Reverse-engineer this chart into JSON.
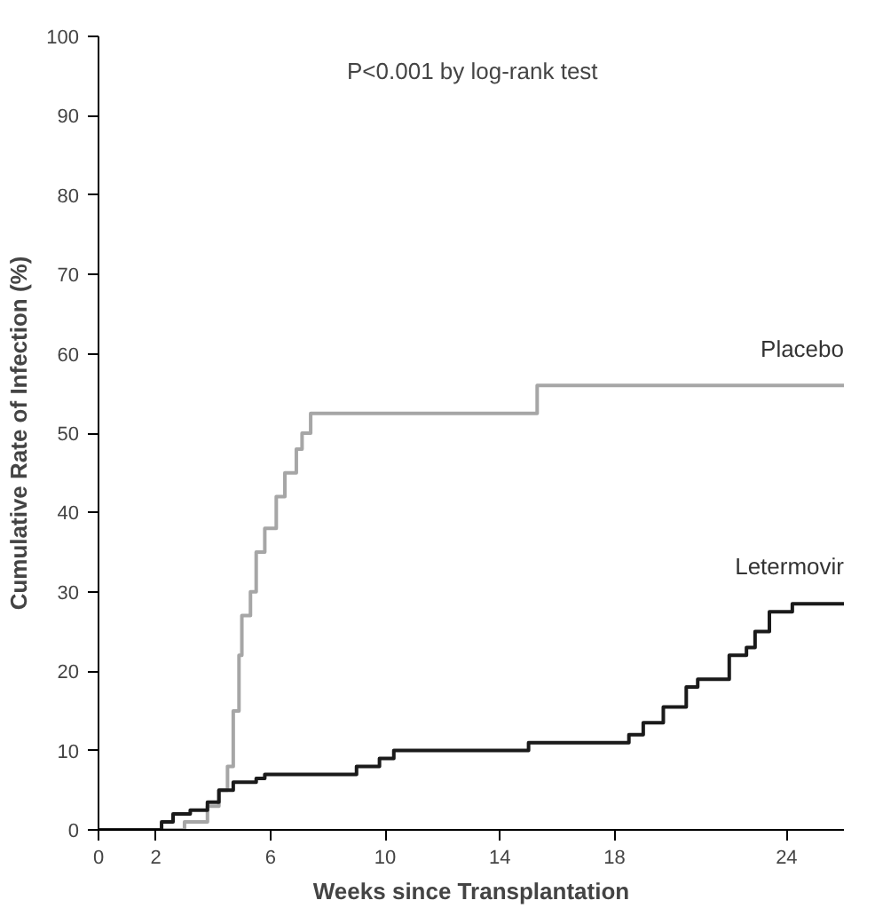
{
  "chart_data": {
    "type": "step",
    "xlabel": "Weeks since Transplantation",
    "ylabel": "Cumulative Rate of Infection (%)",
    "annotations": [
      "P<0.001 by log-rank test"
    ],
    "xlim": [
      0,
      26
    ],
    "ylim": [
      0,
      100
    ],
    "xticks": [
      0,
      2,
      6,
      10,
      14,
      18,
      24
    ],
    "yticks": [
      0,
      10,
      20,
      30,
      40,
      50,
      60,
      70,
      80,
      90,
      100
    ],
    "grid": false,
    "series": [
      {
        "name": "Placebo",
        "color": "#a6a6a6",
        "x": [
          0,
          2,
          3,
          3.8,
          4.2,
          4.5,
          4.7,
          4.9,
          5,
          5.3,
          5.5,
          5.8,
          6.2,
          6.5,
          6.9,
          7.1,
          7.4,
          15.2,
          15.3,
          26
        ],
        "values": [
          0,
          0,
          1,
          3,
          5,
          8,
          15,
          22,
          27,
          30,
          35,
          38,
          42,
          45,
          48,
          50,
          52.5,
          52.5,
          56,
          56
        ]
      },
      {
        "name": "Letermovir",
        "color": "#1a1a1a",
        "x": [
          0,
          1.8,
          2.2,
          2.6,
          3.2,
          3.8,
          4.2,
          4.7,
          5.5,
          5.8,
          8.6,
          9,
          9.8,
          10.3,
          14.5,
          15,
          18.2,
          18.5,
          19,
          19.7,
          20.5,
          20.9,
          21.7,
          22,
          22.6,
          22.9,
          23.4,
          24.2,
          26
        ],
        "values": [
          0,
          0,
          1,
          2,
          2.5,
          3.5,
          5,
          6,
          6.5,
          7,
          7,
          8,
          9,
          10,
          10,
          11,
          11,
          12,
          13.5,
          15.5,
          18,
          19,
          19,
          22,
          23,
          25,
          27.5,
          28.5,
          28.5
        ]
      }
    ]
  }
}
